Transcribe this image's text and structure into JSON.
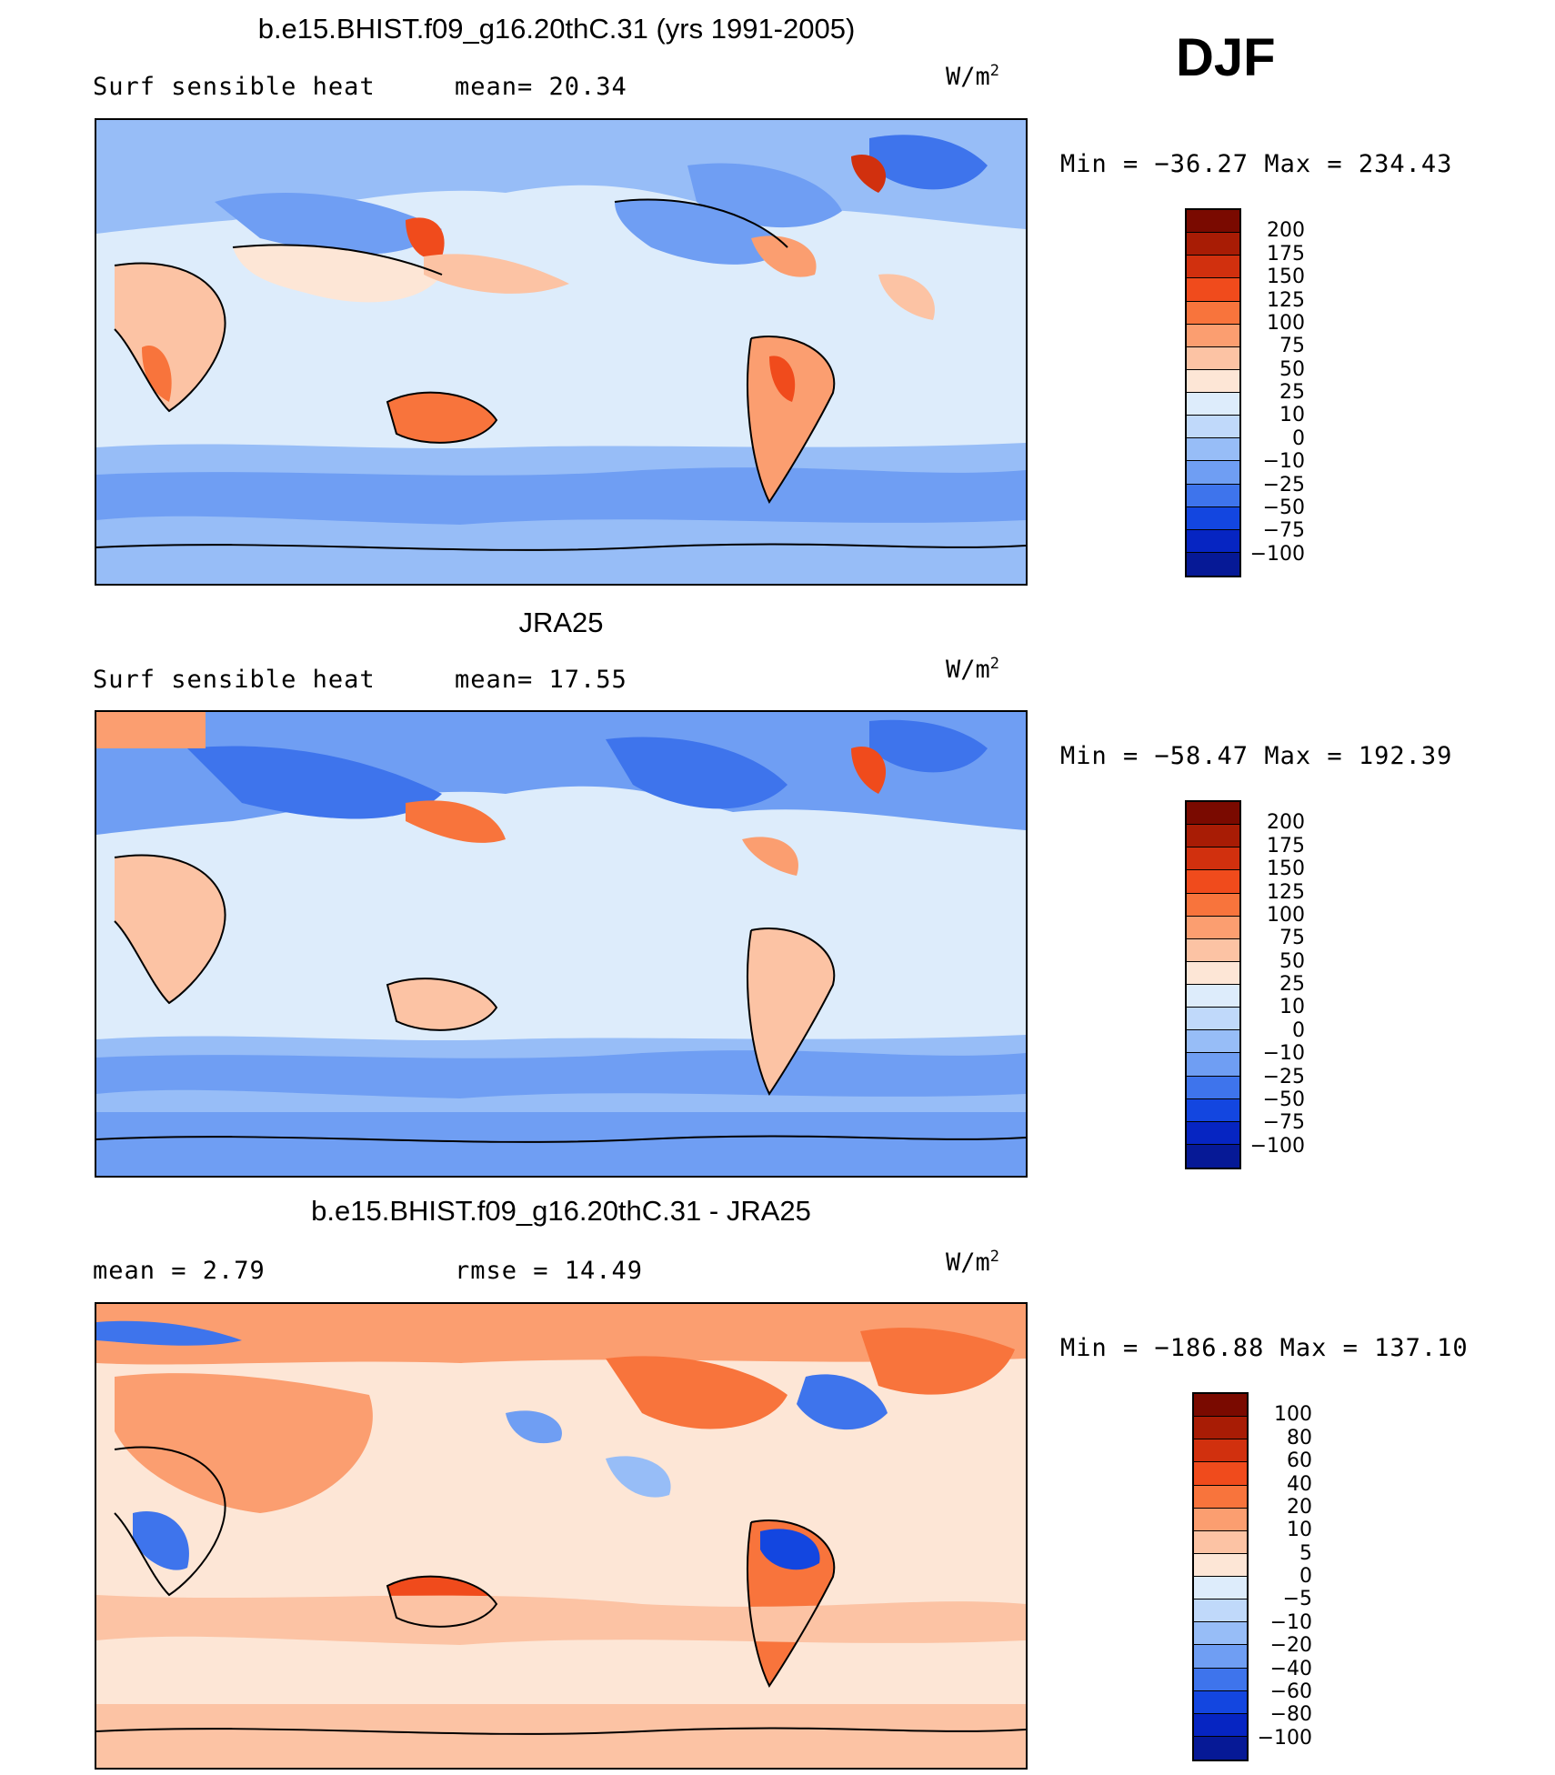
{
  "season": "DJF",
  "panels": [
    {
      "title": "b.e15.BHIST.f09_g16.20thC.31 (yrs 1991-2005)",
      "left_label": "Surf  sensible  heat",
      "mid_label": "mean=   20.34",
      "units_base": "W/m",
      "units_exp": "2",
      "minmax": "Min  =  −36.27  Max  =  234.43",
      "levels": [
        "200",
        "175",
        "150",
        "125",
        "100",
        "75",
        "50",
        "25",
        "10",
        "0",
        "−10",
        "−25",
        "−50",
        "−75",
        "−100"
      ],
      "colors": [
        "#7a0a00",
        "#a81c05",
        "#d1300e",
        "#f04b1c",
        "#f8743c",
        "#fb9e70",
        "#fcc3a4",
        "#fde6d6",
        "#ddecfb",
        "#c0d9fa",
        "#97bdf7",
        "#6f9ef3",
        "#3e74ec",
        "#1346e0",
        "#0625c2",
        "#061996"
      ]
    },
    {
      "title": "JRA25",
      "left_label": "Surf  sensible  heat",
      "mid_label": "mean=   17.55",
      "units_base": "W/m",
      "units_exp": "2",
      "minmax": "Min  =  −58.47  Max  =  192.39",
      "levels": [
        "200",
        "175",
        "150",
        "125",
        "100",
        "75",
        "50",
        "25",
        "10",
        "0",
        "−10",
        "−25",
        "−50",
        "−75",
        "−100"
      ],
      "colors": [
        "#7a0a00",
        "#a81c05",
        "#d1300e",
        "#f04b1c",
        "#f8743c",
        "#fb9e70",
        "#fcc3a4",
        "#fde6d6",
        "#ddecfb",
        "#c0d9fa",
        "#97bdf7",
        "#6f9ef3",
        "#3e74ec",
        "#1346e0",
        "#0625c2",
        "#061996"
      ]
    },
    {
      "title": "b.e15.BHIST.f09_g16.20thC.31 - JRA25",
      "left_label": "mean  =     2.79",
      "mid_label": "rmse  =    14.49",
      "units_base": "W/m",
      "units_exp": "2",
      "minmax": "Min  =  −186.88  Max  =  137.10",
      "levels": [
        "100",
        "80",
        "60",
        "40",
        "20",
        "10",
        "5",
        "0",
        "−5",
        "−10",
        "−20",
        "−40",
        "−60",
        "−80",
        "−100"
      ],
      "colors": [
        "#7a0a00",
        "#a81c05",
        "#d1300e",
        "#f04b1c",
        "#f8743c",
        "#fb9e70",
        "#fcc3a4",
        "#fde6d6",
        "#ddecfb",
        "#c0d9fa",
        "#97bdf7",
        "#6f9ef3",
        "#3e74ec",
        "#1346e0",
        "#0625c2",
        "#061996"
      ]
    }
  ]
}
